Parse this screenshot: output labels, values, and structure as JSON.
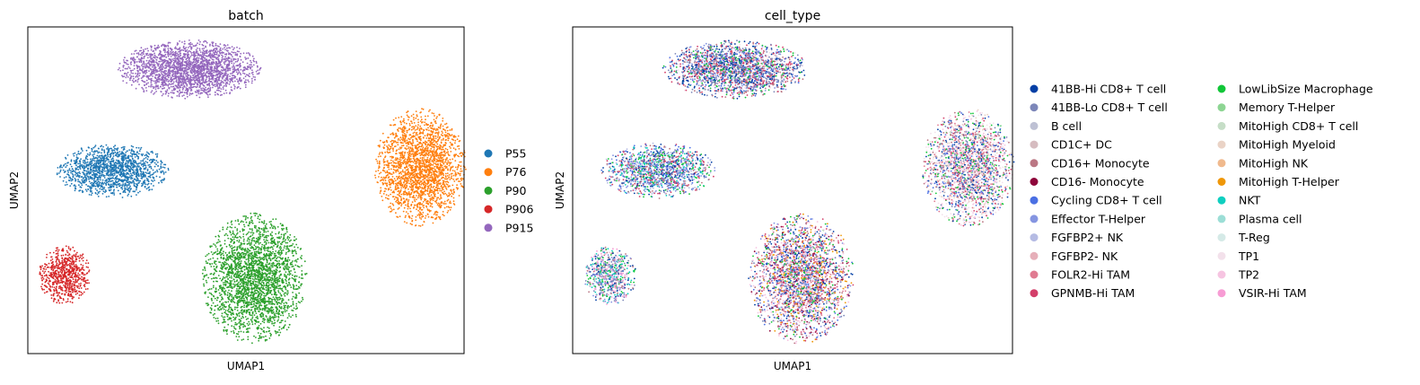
{
  "chart_data": [
    {
      "type": "scatter",
      "title": "batch",
      "xlabel": "UMAP1",
      "ylabel": "UMAP2",
      "grid": false,
      "legend_position": "right",
      "legend": [
        {
          "label": "P55",
          "color": "#1f77b4"
        },
        {
          "label": "P76",
          "color": "#ff7f0e"
        },
        {
          "label": "P90",
          "color": "#2ca02c"
        },
        {
          "label": "P906",
          "color": "#d62728"
        },
        {
          "label": "P915",
          "color": "#9467bd"
        }
      ],
      "clusters": [
        {
          "batch": "P915",
          "color": "#9467bd",
          "cx": 0.37,
          "cy": 0.87,
          "rx": 0.165,
          "ry": 0.09,
          "n": 2200
        },
        {
          "batch": "P55",
          "color": "#1f77b4",
          "cx": 0.195,
          "cy": 0.56,
          "rx": 0.13,
          "ry": 0.085,
          "n": 1400
        },
        {
          "batch": "P76",
          "color": "#ff7f0e",
          "cx": 0.9,
          "cy": 0.57,
          "rx": 0.105,
          "ry": 0.18,
          "n": 2200
        },
        {
          "batch": "P90",
          "color": "#2ca02c",
          "cx": 0.52,
          "cy": 0.23,
          "rx": 0.12,
          "ry": 0.2,
          "n": 2600
        },
        {
          "batch": "P906",
          "color": "#d62728",
          "cx": 0.085,
          "cy": 0.24,
          "rx": 0.06,
          "ry": 0.09,
          "n": 700
        }
      ]
    },
    {
      "type": "scatter",
      "title": "cell_type",
      "xlabel": "UMAP1",
      "ylabel": "UMAP2",
      "grid": false,
      "legend_position": "right",
      "legend": [
        {
          "label": "41BB-Hi CD8+ T cell",
          "color": "#023fa5"
        },
        {
          "label": "41BB-Lo CD8+ T cell",
          "color": "#7d87b9"
        },
        {
          "label": "B cell",
          "color": "#bec1d4"
        },
        {
          "label": "CD1C+ DC",
          "color": "#d6bcc0"
        },
        {
          "label": "CD16+ Monocyte",
          "color": "#bb7784"
        },
        {
          "label": "CD16- Monocyte",
          "color": "#8e063b"
        },
        {
          "label": "Cycling CD8+ T cell",
          "color": "#4a6fe3"
        },
        {
          "label": "Effector T-Helper",
          "color": "#8595e1"
        },
        {
          "label": "FGFBP2+ NK",
          "color": "#b5bbe3"
        },
        {
          "label": "FGFBP2- NK",
          "color": "#e6afb9"
        },
        {
          "label": "FOLR2-Hi TAM",
          "color": "#e07b91"
        },
        {
          "label": "GPNMB-Hi TAM",
          "color": "#d33f6a"
        },
        {
          "label": "LowLibSize Macrophage",
          "color": "#11c638"
        },
        {
          "label": "Memory T-Helper",
          "color": "#8dd593"
        },
        {
          "label": "MitoHigh CD8+ T cell",
          "color": "#c6dec7"
        },
        {
          "label": "MitoHigh Myeloid",
          "color": "#ead3c6"
        },
        {
          "label": "MitoHigh NK",
          "color": "#f0b98d"
        },
        {
          "label": "MitoHigh T-Helper",
          "color": "#ef9708"
        },
        {
          "label": "NKT",
          "color": "#0fcfc0"
        },
        {
          "label": "Plasma cell",
          "color": "#9cded6"
        },
        {
          "label": "T-Reg",
          "color": "#d5eae7"
        },
        {
          "label": "TP1",
          "color": "#f3e1eb"
        },
        {
          "label": "TP2",
          "color": "#f6c4e1"
        },
        {
          "label": "VSIR-Hi TAM",
          "color": "#f79cd4"
        }
      ],
      "clusters": [
        {
          "batch": "P915",
          "cx": 0.37,
          "cy": 0.87,
          "rx": 0.165,
          "ry": 0.09,
          "n": 2200,
          "mix": [
            0,
            0,
            1,
            1,
            6,
            7,
            11,
            11,
            4,
            12,
            21
          ]
        },
        {
          "batch": "P55",
          "cx": 0.195,
          "cy": 0.56,
          "rx": 0.13,
          "ry": 0.085,
          "n": 1400,
          "mix": [
            0,
            6,
            1,
            7,
            11,
            4,
            18,
            8,
            12
          ]
        },
        {
          "batch": "P76",
          "cx": 0.9,
          "cy": 0.57,
          "rx": 0.105,
          "ry": 0.18,
          "n": 2200,
          "mix": [
            21,
            21,
            15,
            11,
            10,
            4,
            0,
            1,
            6,
            22,
            12
          ]
        },
        {
          "batch": "P90",
          "cx": 0.52,
          "cy": 0.23,
          "rx": 0.12,
          "ry": 0.2,
          "n": 2600,
          "mix": [
            22,
            22,
            0,
            6,
            11,
            10,
            12,
            17,
            1,
            4,
            5,
            7
          ]
        },
        {
          "batch": "P906",
          "cx": 0.085,
          "cy": 0.24,
          "rx": 0.06,
          "ry": 0.09,
          "n": 700,
          "mix": [
            22,
            23,
            0,
            1,
            4,
            12,
            18,
            7
          ]
        }
      ]
    }
  ]
}
